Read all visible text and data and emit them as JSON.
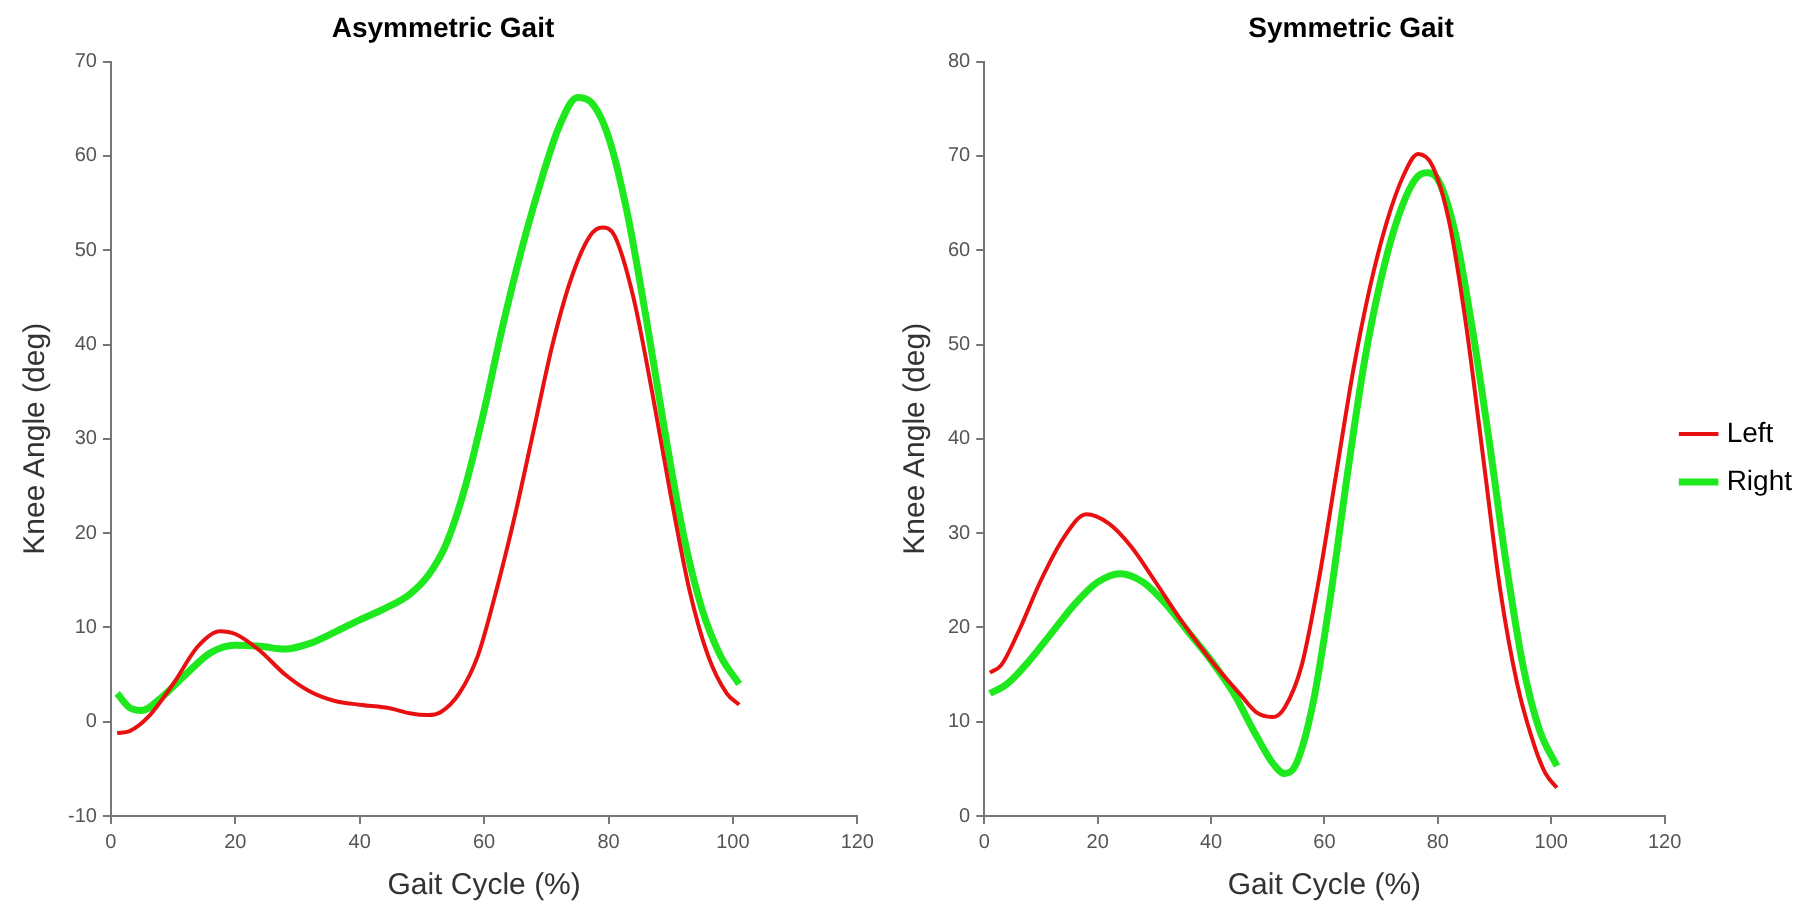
{
  "chart_data": [
    {
      "type": "line",
      "title": "Asymmetric Gait",
      "xlabel": "Gait Cycle (%)",
      "ylabel": "Knee Angle (deg)",
      "xlim": [
        0,
        120
      ],
      "xticks": [
        0,
        20,
        40,
        60,
        80,
        100,
        120
      ],
      "ylim": [
        -10,
        70
      ],
      "yticks": [
        -10,
        0,
        10,
        20,
        30,
        40,
        50,
        60,
        70
      ],
      "grid": false,
      "legend": false,
      "marker": "none",
      "line_style": "solid",
      "series": [
        {
          "color": "#e81010",
          "x": [
            1,
            3,
            6,
            10,
            14,
            17.5,
            20,
            24,
            28,
            32,
            36,
            40,
            45,
            48,
            51,
            53,
            56,
            59,
            62,
            65,
            68,
            71,
            74,
            77,
            79,
            81,
            84,
            87,
            90,
            93,
            96,
            99,
            101
          ],
          "values": [
            -1.2,
            -1,
            0.5,
            4,
            8,
            9.6,
            9.3,
            7.5,
            5,
            3.2,
            2.2,
            1.8,
            1.4,
            0.9,
            0.7,
            1,
            3,
            7,
            14,
            22,
            31,
            40,
            47,
            51.5,
            52.4,
            51.5,
            45,
            35,
            24,
            14,
            7,
            3,
            1.8
          ]
        },
        {
          "color": "#1ee81e",
          "x": [
            1,
            3,
            5,
            8,
            12,
            16,
            20,
            24,
            28,
            32,
            36,
            40,
            44,
            48,
            51,
            54,
            57,
            60,
            63,
            66,
            69,
            72,
            75,
            77,
            80,
            83,
            86,
            89,
            92,
            95,
            98,
            101
          ],
          "values": [
            3,
            1.5,
            1.2,
            2.5,
            5,
            7.3,
            8.1,
            8,
            7.7,
            8.3,
            9.5,
            10.8,
            12,
            13.5,
            15.5,
            19,
            25,
            33,
            42,
            50,
            57,
            63,
            66.2,
            65.8,
            62,
            54,
            43,
            31,
            20,
            12,
            7,
            4
          ]
        }
      ]
    },
    {
      "type": "line",
      "title": "Symmetric Gait",
      "xlabel": "Gait Cycle (%)",
      "ylabel": "Knee Angle (deg)",
      "xlim": [
        0,
        120
      ],
      "xticks": [
        0,
        20,
        40,
        60,
        80,
        100,
        120
      ],
      "ylim": [
        0,
        80
      ],
      "yticks": [
        0,
        10,
        20,
        30,
        40,
        50,
        60,
        70,
        80
      ],
      "grid": false,
      "legend": "right",
      "marker": "none",
      "line_style": "solid",
      "series": [
        {
          "name": "Left",
          "color": "#e81010",
          "x": [
            1,
            3,
            6,
            10,
            14,
            18,
            22,
            26,
            30,
            35,
            40,
            45,
            48,
            51,
            53,
            56,
            59,
            62,
            65,
            68,
            71,
            74,
            76.5,
            79,
            82,
            85,
            88,
            91,
            94,
            97,
            99,
            101
          ],
          "values": [
            15.2,
            16,
            19.5,
            25,
            29.5,
            32,
            31,
            28.5,
            25,
            20.5,
            16.5,
            13,
            11,
            10.5,
            11.5,
            16,
            25,
            36,
            47,
            56,
            63,
            68,
            70.2,
            69,
            63,
            52,
            38,
            24,
            14,
            7.5,
            4.5,
            3
          ]
        },
        {
          "name": "Right",
          "color": "#1ee81e",
          "x": [
            1,
            4,
            8,
            12,
            16,
            20,
            24,
            28,
            32,
            36,
            40,
            44,
            48,
            51,
            53,
            55,
            58,
            61,
            64,
            67,
            70,
            73,
            76,
            78,
            80,
            83,
            86,
            89,
            92,
            95,
            98,
            101
          ],
          "values": [
            13,
            14,
            16.5,
            19.5,
            22.5,
            24.8,
            25.7,
            24.8,
            22.5,
            19.5,
            16.5,
            13,
            8.5,
            5.5,
            4.5,
            5.5,
            12,
            23,
            36,
            48,
            57,
            63.5,
            67.5,
            68.2,
            67.5,
            62,
            52,
            40,
            27,
            16,
            9,
            5.3
          ]
        }
      ]
    }
  ]
}
